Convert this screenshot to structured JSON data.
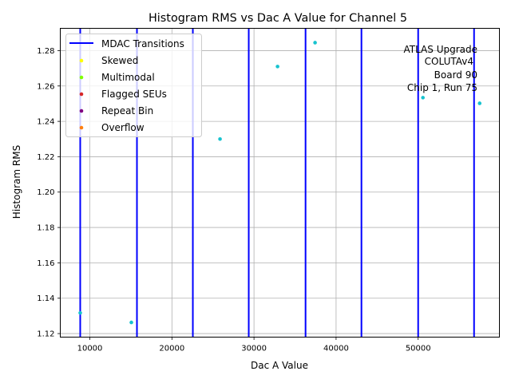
{
  "chart_data": {
    "type": "scatter",
    "title": "Histogram RMS vs Dac A Value for Channel 5",
    "xlabel": "Dac A Value",
    "ylabel": "Histogram RMS",
    "xlim": [
      6400,
      59900
    ],
    "ylim": [
      1.118,
      1.2926
    ],
    "grid": true,
    "xticks": [
      10000,
      20000,
      30000,
      40000,
      50000
    ],
    "xtick_labels": [
      "10000",
      "20000",
      "30000",
      "40000",
      "50000"
    ],
    "yticks": [
      1.12,
      1.14,
      1.16,
      1.18,
      1.2,
      1.22,
      1.24,
      1.26,
      1.28
    ],
    "ytick_labels": [
      "1.12",
      "1.14",
      "1.16",
      "1.18",
      "1.20",
      "1.22",
      "1.24",
      "1.26",
      "1.28"
    ],
    "points": {
      "color": "#17c3cf",
      "x": [
        8830,
        15060,
        25860,
        32870,
        37440,
        50580,
        57490
      ],
      "y": [
        1.1317,
        1.1263,
        1.23,
        1.271,
        1.2845,
        1.2534,
        1.2502
      ]
    },
    "mdac_transitions": {
      "color": "#0000ff",
      "x": [
        8830,
        15740,
        22550,
        29360,
        36280,
        43090,
        50000,
        56810
      ]
    },
    "legend": {
      "placement": "upper-left",
      "entries": [
        {
          "label": "MDAC Transitions",
          "marker": "line",
          "color": "#0000ff"
        },
        {
          "label": "Skewed",
          "marker": "dot",
          "color": "#ffff00"
        },
        {
          "label": "Multimodal",
          "marker": "dot",
          "color": "#7fff00"
        },
        {
          "label": "Flagged SEUs",
          "marker": "dot",
          "color": "#d62728"
        },
        {
          "label": "Repeat Bin",
          "marker": "dot",
          "color": "#800080"
        },
        {
          "label": "Overflow",
          "marker": "dot",
          "color": "#ff7f0e"
        }
      ]
    },
    "annotation": [
      "ATLAS Upgrade",
      "COLUTAv4",
      "Board 90",
      "Chip 1, Run 75"
    ]
  }
}
